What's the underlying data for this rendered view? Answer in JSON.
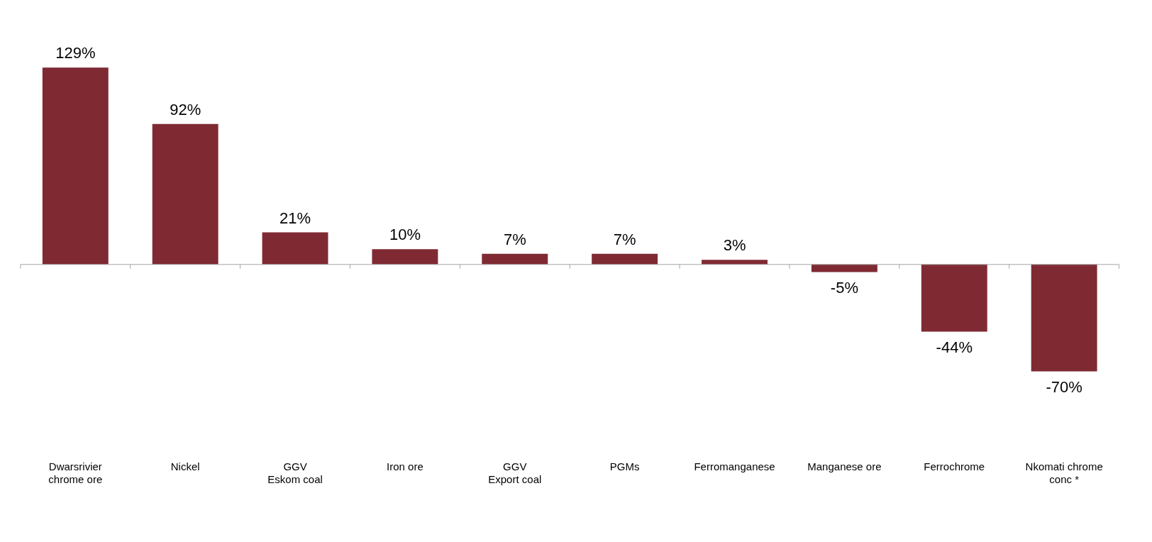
{
  "chart_data": {
    "type": "bar",
    "categories": [
      "Dwarsrivier\nchrome ore",
      "Nickel",
      "GGV\nEskom coal",
      "Iron ore",
      "GGV\nExport coal",
      "PGMs",
      "Ferromanganese",
      "Manganese ore",
      "Ferrochrome",
      "Nkomati chrome\nconc *"
    ],
    "values": [
      129,
      92,
      21,
      10,
      7,
      7,
      3,
      -5,
      -44,
      -70
    ],
    "color": "#7f2a33",
    "value_labels": [
      "129%",
      "92%",
      "21%",
      "10%",
      "7%",
      "7%",
      "3%",
      "-5%",
      "-44%",
      "-70%"
    ],
    "grid": false,
    "legend": false
  }
}
